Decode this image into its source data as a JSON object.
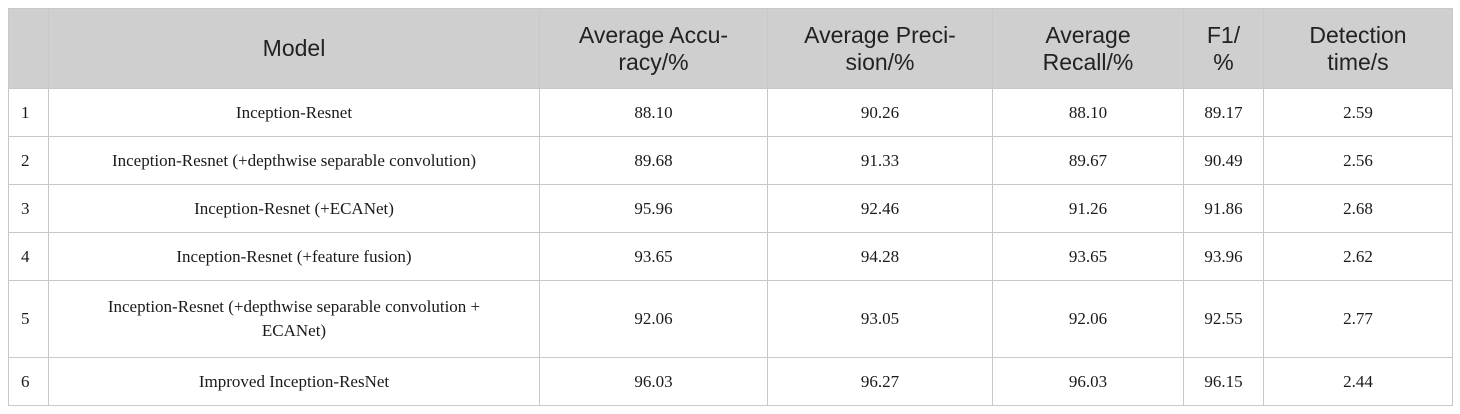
{
  "table": {
    "headers": [
      [
        ""
      ],
      [
        "Model"
      ],
      [
        "Average Accu-",
        "racy/%"
      ],
      [
        "Average Preci-",
        "sion/%"
      ],
      [
        "Average",
        "Recall/%"
      ],
      [
        "F1/",
        "%"
      ],
      [
        "Detection",
        "time/s"
      ]
    ],
    "rows": [
      {
        "id": "1",
        "model": [
          "Inception-Resnet"
        ],
        "accuracy": "88.10",
        "precision": "90.26",
        "recall": "88.10",
        "f1": "89.17",
        "time": "2.59"
      },
      {
        "id": "2",
        "model": [
          "Inception-Resnet (+depthwise separable convolution)"
        ],
        "accuracy": "89.68",
        "precision": "91.33",
        "recall": "89.67",
        "f1": "90.49",
        "time": "2.56"
      },
      {
        "id": "3",
        "model": [
          "Inception-Resnet (+ECANet)"
        ],
        "accuracy": "95.96",
        "precision": "92.46",
        "recall": "91.26",
        "f1": "91.86",
        "time": "2.68"
      },
      {
        "id": "4",
        "model": [
          "Inception-Resnet (+feature fusion)"
        ],
        "accuracy": "93.65",
        "precision": "94.28",
        "recall": "93.65",
        "f1": "93.96",
        "time": "2.62"
      },
      {
        "id": "5",
        "model": [
          "Inception-Resnet (+depthwise separable convolution +",
          "ECANet)"
        ],
        "accuracy": "92.06",
        "precision": "93.05",
        "recall": "92.06",
        "f1": "92.55",
        "time": "2.77"
      },
      {
        "id": "6",
        "model": [
          "Improved Inception-ResNet"
        ],
        "accuracy": "96.03",
        "precision": "96.27",
        "recall": "96.03",
        "f1": "96.15",
        "time": "2.44"
      }
    ]
  }
}
